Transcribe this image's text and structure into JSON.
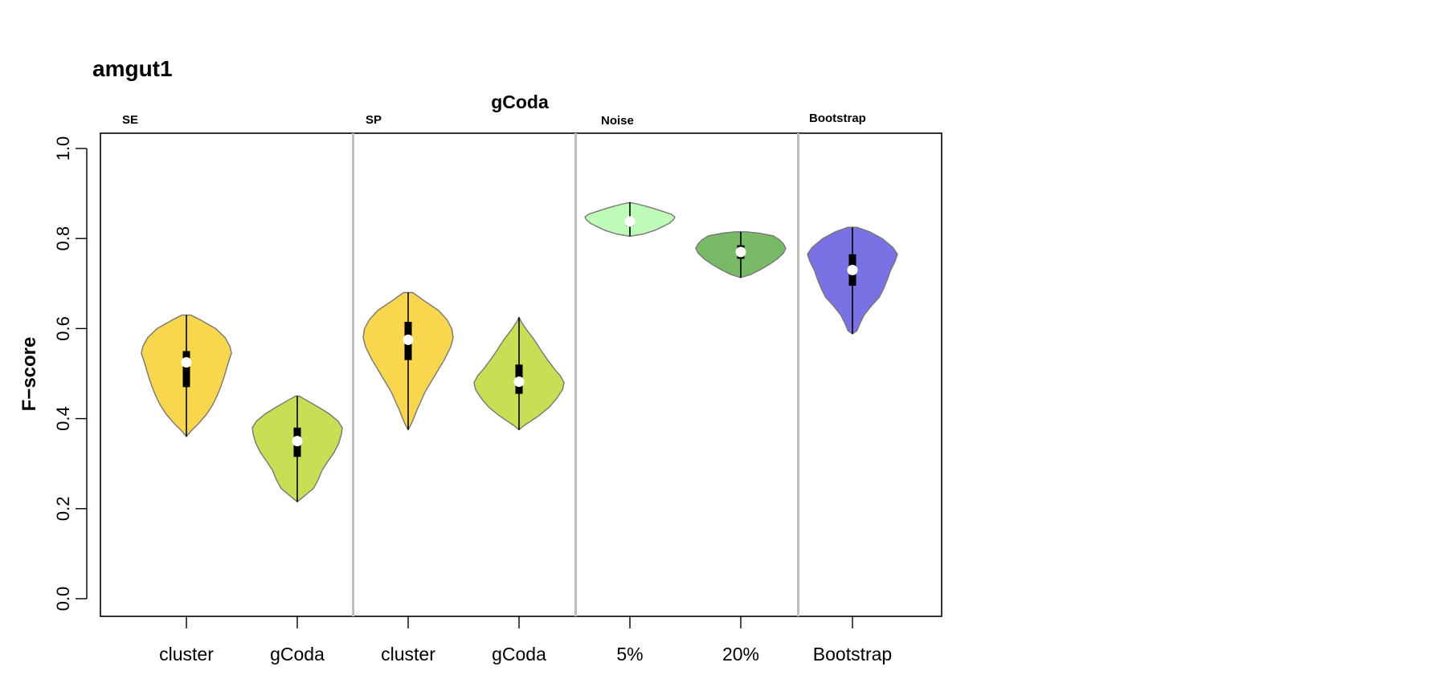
{
  "chart_data": {
    "type": "violin",
    "title": "amgut1",
    "subtitle": "gCoda",
    "ylabel": "F−score",
    "xlabel": "",
    "ylim": [
      0.0,
      1.0
    ],
    "yticks": [
      "0.0",
      "0.2",
      "0.4",
      "0.6",
      "0.8",
      "1.0"
    ],
    "grid": false,
    "sections": [
      {
        "label": "SE",
        "categories": [
          0,
          1
        ]
      },
      {
        "label": "SP",
        "categories": [
          2,
          3
        ]
      },
      {
        "label": "Noise",
        "categories": [
          4,
          5
        ]
      },
      {
        "label": "Bootstrap",
        "categories": [
          6
        ]
      }
    ],
    "categories": [
      "cluster",
      "gCoda",
      "cluster",
      "gCoda",
      "5%",
      "20%",
      "Bootstrap"
    ],
    "series": [
      {
        "category": "cluster",
        "color": "#F8D64E",
        "min": 0.36,
        "q1": 0.47,
        "median": 0.525,
        "q3": 0.55,
        "max": 0.63,
        "density": [
          [
            0.36,
            0.0
          ],
          [
            0.37,
            0.08
          ],
          [
            0.39,
            0.28
          ],
          [
            0.41,
            0.45
          ],
          [
            0.43,
            0.58
          ],
          [
            0.45,
            0.68
          ],
          [
            0.47,
            0.76
          ],
          [
            0.49,
            0.83
          ],
          [
            0.51,
            0.89
          ],
          [
            0.53,
            0.95
          ],
          [
            0.545,
            1.0
          ],
          [
            0.56,
            0.97
          ],
          [
            0.58,
            0.86
          ],
          [
            0.6,
            0.65
          ],
          [
            0.62,
            0.3
          ],
          [
            0.63,
            0.1
          ]
        ]
      },
      {
        "category": "gCoda",
        "color": "#C9DD55",
        "min": 0.215,
        "q1": 0.315,
        "median": 0.35,
        "q3": 0.38,
        "max": 0.45,
        "density": [
          [
            0.215,
            0.0
          ],
          [
            0.225,
            0.12
          ],
          [
            0.245,
            0.36
          ],
          [
            0.265,
            0.47
          ],
          [
            0.285,
            0.55
          ],
          [
            0.305,
            0.68
          ],
          [
            0.325,
            0.82
          ],
          [
            0.345,
            0.92
          ],
          [
            0.365,
            0.98
          ],
          [
            0.38,
            1.0
          ],
          [
            0.395,
            0.9
          ],
          [
            0.41,
            0.72
          ],
          [
            0.425,
            0.48
          ],
          [
            0.44,
            0.22
          ],
          [
            0.45,
            0.04
          ]
        ]
      },
      {
        "category": "cluster",
        "color": "#F8D64E",
        "min": 0.375,
        "q1": 0.53,
        "median": 0.575,
        "q3": 0.615,
        "max": 0.68,
        "density": [
          [
            0.375,
            0.0
          ],
          [
            0.39,
            0.08
          ],
          [
            0.42,
            0.2
          ],
          [
            0.46,
            0.38
          ],
          [
            0.5,
            0.62
          ],
          [
            0.53,
            0.8
          ],
          [
            0.56,
            0.95
          ],
          [
            0.58,
            1.0
          ],
          [
            0.6,
            0.97
          ],
          [
            0.62,
            0.86
          ],
          [
            0.64,
            0.68
          ],
          [
            0.66,
            0.38
          ],
          [
            0.68,
            0.1
          ]
        ]
      },
      {
        "category": "gCoda",
        "color": "#C9DD55",
        "min": 0.375,
        "q1": 0.455,
        "median": 0.482,
        "q3": 0.52,
        "max": 0.625,
        "density": [
          [
            0.375,
            0.0
          ],
          [
            0.385,
            0.12
          ],
          [
            0.405,
            0.42
          ],
          [
            0.425,
            0.67
          ],
          [
            0.445,
            0.84
          ],
          [
            0.465,
            0.97
          ],
          [
            0.48,
            1.0
          ],
          [
            0.495,
            0.92
          ],
          [
            0.51,
            0.79
          ],
          [
            0.53,
            0.64
          ],
          [
            0.55,
            0.5
          ],
          [
            0.575,
            0.34
          ],
          [
            0.6,
            0.15
          ],
          [
            0.615,
            0.05
          ],
          [
            0.625,
            0.0
          ]
        ]
      },
      {
        "category": "5%",
        "color": "#BFFBB9",
        "min": 0.805,
        "q1": 0.828,
        "median": 0.838,
        "q3": 0.845,
        "max": 0.88,
        "density": [
          [
            0.805,
            0.0
          ],
          [
            0.81,
            0.3
          ],
          [
            0.818,
            0.55
          ],
          [
            0.826,
            0.72
          ],
          [
            0.834,
            0.88
          ],
          [
            0.842,
            0.97
          ],
          [
            0.848,
            1.0
          ],
          [
            0.854,
            0.92
          ],
          [
            0.862,
            0.68
          ],
          [
            0.87,
            0.42
          ],
          [
            0.877,
            0.15
          ],
          [
            0.88,
            0.0
          ]
        ]
      },
      {
        "category": "20%",
        "color": "#78BA66",
        "min": 0.713,
        "q1": 0.755,
        "median": 0.77,
        "q3": 0.785,
        "max": 0.815,
        "density": [
          [
            0.713,
            0.0
          ],
          [
            0.72,
            0.22
          ],
          [
            0.73,
            0.42
          ],
          [
            0.742,
            0.63
          ],
          [
            0.755,
            0.82
          ],
          [
            0.768,
            0.95
          ],
          [
            0.778,
            1.0
          ],
          [
            0.788,
            0.95
          ],
          [
            0.798,
            0.85
          ],
          [
            0.806,
            0.72
          ],
          [
            0.812,
            0.4
          ],
          [
            0.815,
            0.12
          ]
        ]
      },
      {
        "category": "Bootstrap",
        "color": "#7A71E5",
        "min": 0.588,
        "q1": 0.695,
        "median": 0.73,
        "q3": 0.765,
        "max": 0.825,
        "density": [
          [
            0.588,
            0.0
          ],
          [
            0.595,
            0.1
          ],
          [
            0.61,
            0.16
          ],
          [
            0.63,
            0.26
          ],
          [
            0.65,
            0.42
          ],
          [
            0.67,
            0.6
          ],
          [
            0.69,
            0.7
          ],
          [
            0.71,
            0.78
          ],
          [
            0.73,
            0.85
          ],
          [
            0.75,
            0.95
          ],
          [
            0.765,
            1.0
          ],
          [
            0.78,
            0.9
          ],
          [
            0.8,
            0.66
          ],
          [
            0.815,
            0.38
          ],
          [
            0.825,
            0.1
          ]
        ]
      }
    ]
  }
}
